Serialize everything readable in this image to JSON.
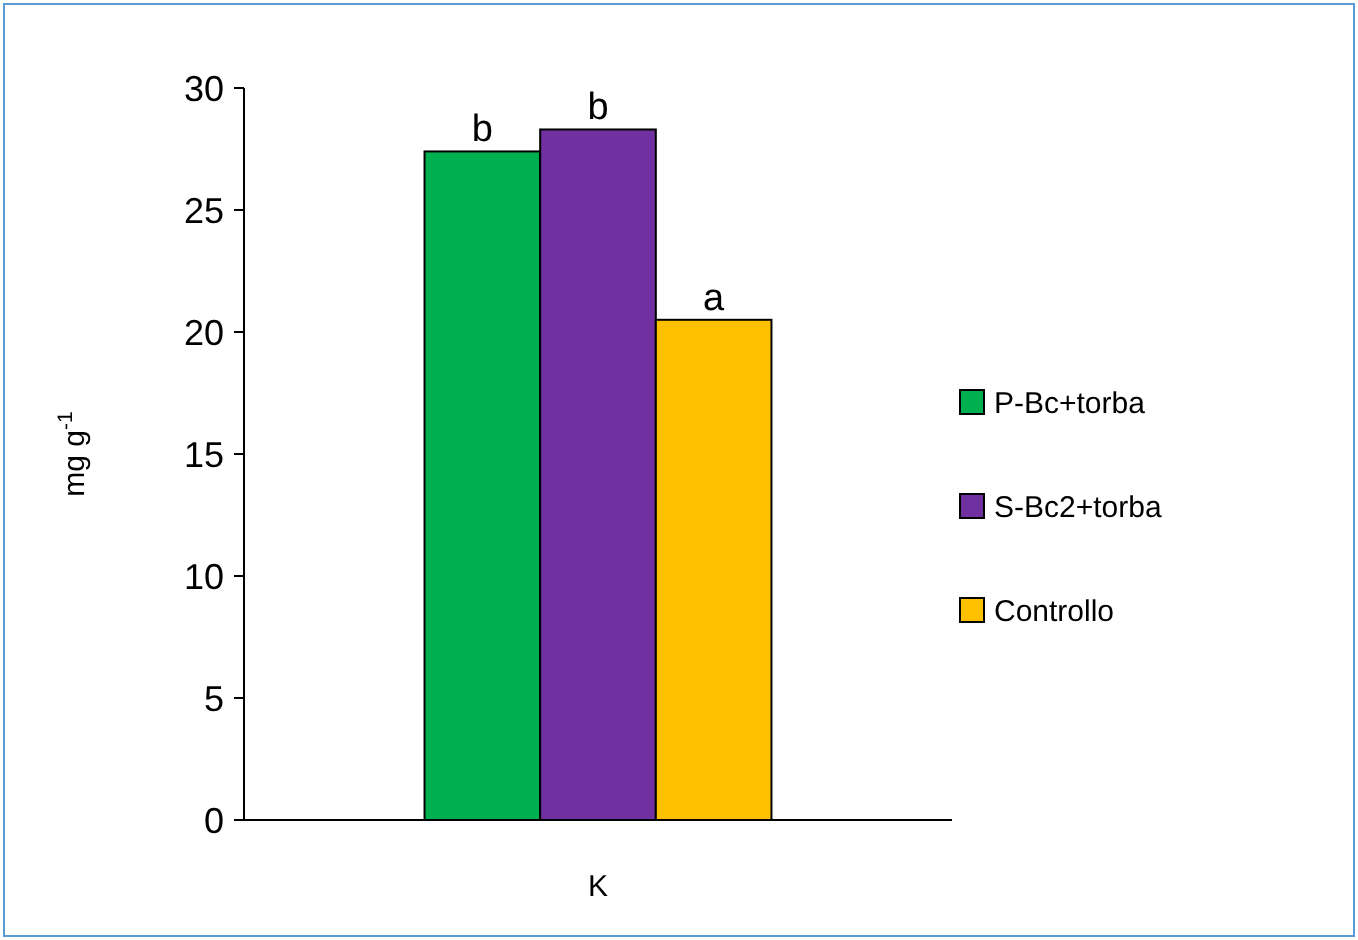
{
  "chart_data": {
    "type": "bar",
    "categories": [
      "K"
    ],
    "ylabel": "mg g$^{-1}$",
    "ylim": [
      0,
      30
    ],
    "yticks": [
      0,
      5,
      10,
      15,
      20,
      25,
      30
    ],
    "grid": false,
    "legend": "right",
    "series": [
      {
        "name": "P-Bc+torba",
        "color": "#00b050",
        "values": [
          27.4
        ],
        "value_labels": [
          "b"
        ]
      },
      {
        "name": "S-Bc2+torba",
        "color": "#7030a0",
        "values": [
          28.3
        ],
        "value_labels": [
          "b"
        ]
      },
      {
        "name": "Controllo",
        "color": "#ffc000",
        "values": [
          20.5
        ],
        "value_labels": [
          "a"
        ]
      }
    ]
  }
}
